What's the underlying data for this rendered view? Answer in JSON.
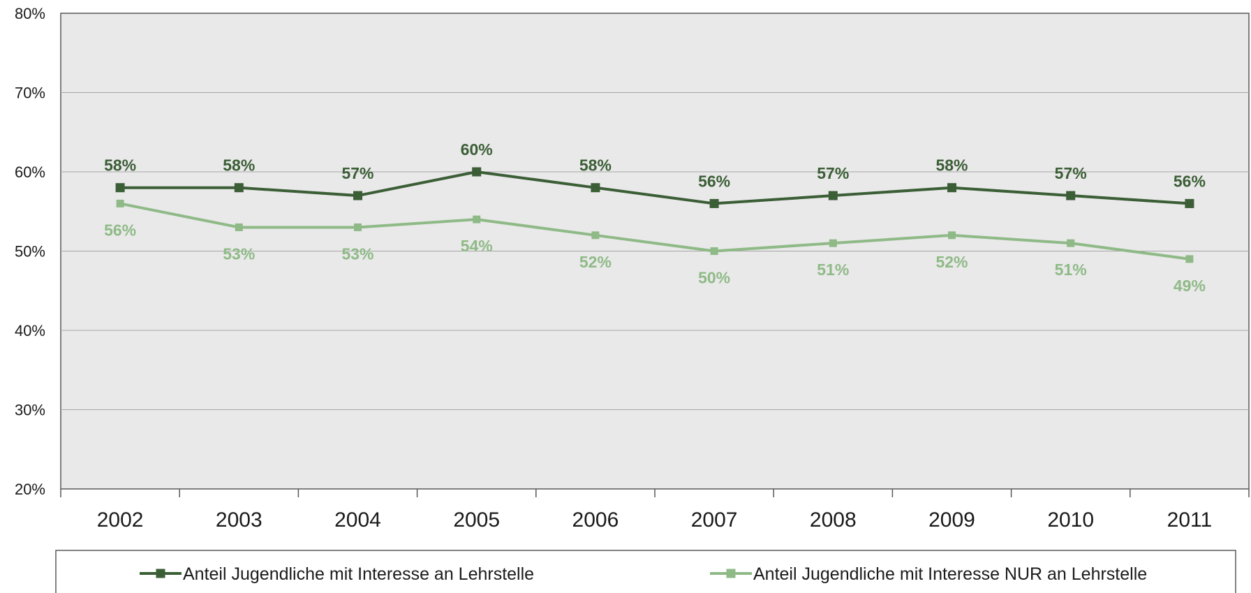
{
  "chart_data": {
    "type": "line",
    "categories": [
      "2002",
      "2003",
      "2004",
      "2005",
      "2006",
      "2007",
      "2008",
      "2009",
      "2010",
      "2011"
    ],
    "series": [
      {
        "name": "Anteil Jugendliche mit Interesse an Lehrstelle",
        "values": [
          58,
          58,
          57,
          60,
          58,
          56,
          57,
          58,
          57,
          56
        ],
        "labels": [
          "58%",
          "58%",
          "57%",
          "60%",
          "58%",
          "56%",
          "57%",
          "58%",
          "57%",
          "56%"
        ],
        "color": "#3b5e36"
      },
      {
        "name": "Anteil Jugendliche mit Interesse NUR an Lehrstelle",
        "values": [
          56,
          53,
          53,
          54,
          52,
          50,
          51,
          52,
          51,
          49
        ],
        "labels": [
          "56%",
          "53%",
          "53%",
          "54%",
          "52%",
          "50%",
          "51%",
          "52%",
          "51%",
          "49%"
        ],
        "color": "#8fba87"
      }
    ],
    "yticks": [
      20,
      30,
      40,
      50,
      60,
      70,
      80
    ],
    "ytick_labels": [
      "20%",
      "30%",
      "40%",
      "50%",
      "60%",
      "70%",
      "80%"
    ],
    "ylim": [
      20,
      80
    ],
    "grid": true,
    "legend": "bottom",
    "title": "",
    "xlabel": "",
    "ylabel": ""
  },
  "colors": {
    "plot_background": "#e9e9e9",
    "gridline": "#a6a6a6",
    "axis": "#595959"
  }
}
